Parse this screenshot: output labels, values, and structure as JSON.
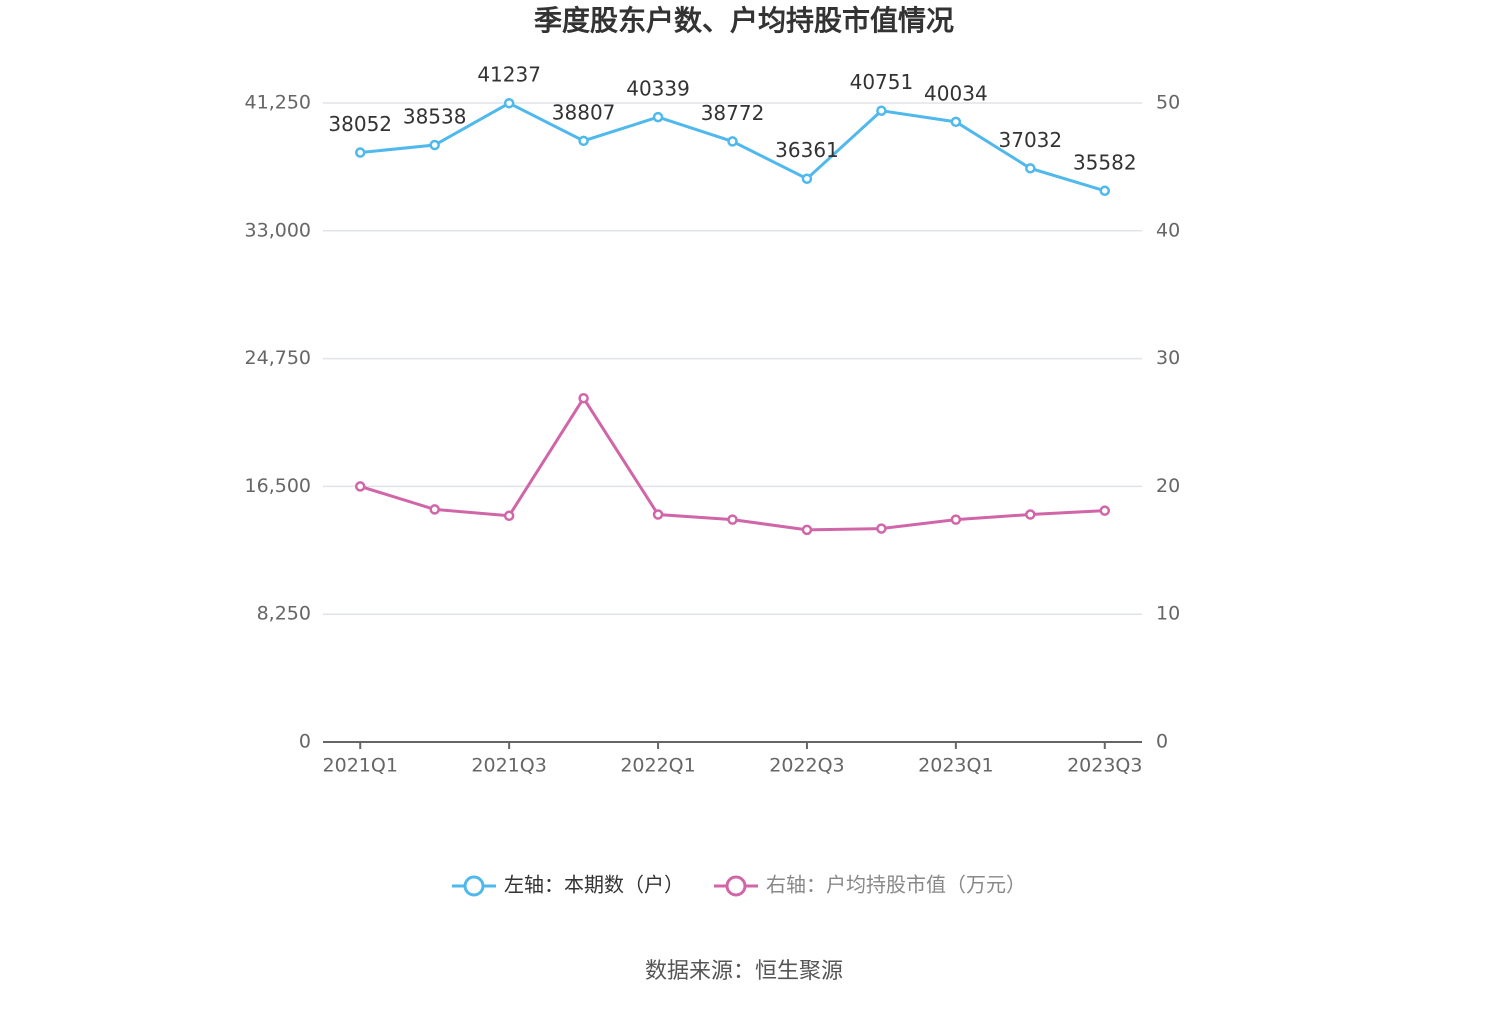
{
  "chart_data": {
    "type": "line",
    "title": "季度股东户数、户均持股市值情况",
    "categories": [
      "2021Q1",
      null,
      "2021Q3",
      null,
      "2022Q1",
      null,
      "2022Q3",
      null,
      "2023Q1",
      null,
      "2023Q3"
    ],
    "series": [
      {
        "name": "左轴：本期数（户）",
        "color": "#4fb8ec",
        "axis": "y",
        "show_labels": true,
        "values": [
          38052,
          38538,
          41237,
          38807,
          40339,
          38772,
          36361,
          40751,
          40034,
          37032,
          35582
        ]
      },
      {
        "name": "右轴：户均持股市值（万元）",
        "color": "#d066a8",
        "axis": "y2",
        "show_labels": false,
        "values": [
          20.0,
          18.2,
          17.7,
          26.9,
          17.8,
          17.4,
          16.6,
          16.7,
          17.4,
          17.8,
          18.1
        ]
      }
    ],
    "ylim": [
      0,
      41250
    ],
    "yticks": [
      0,
      {
        "value": 8250,
        "label": "8,250"
      },
      {
        "value": 16500,
        "label": "16,500"
      },
      {
        "value": 24750,
        "label": "24,750"
      },
      {
        "value": 33000,
        "label": "33,000"
      },
      {
        "value": 41250,
        "label": "41,250"
      }
    ],
    "y2lim": [
      0,
      50
    ],
    "y2ticks": [
      0,
      10,
      20,
      30,
      40,
      50
    ],
    "grid": true,
    "legend": "bottom",
    "source": "数据来源：恒生聚源"
  }
}
